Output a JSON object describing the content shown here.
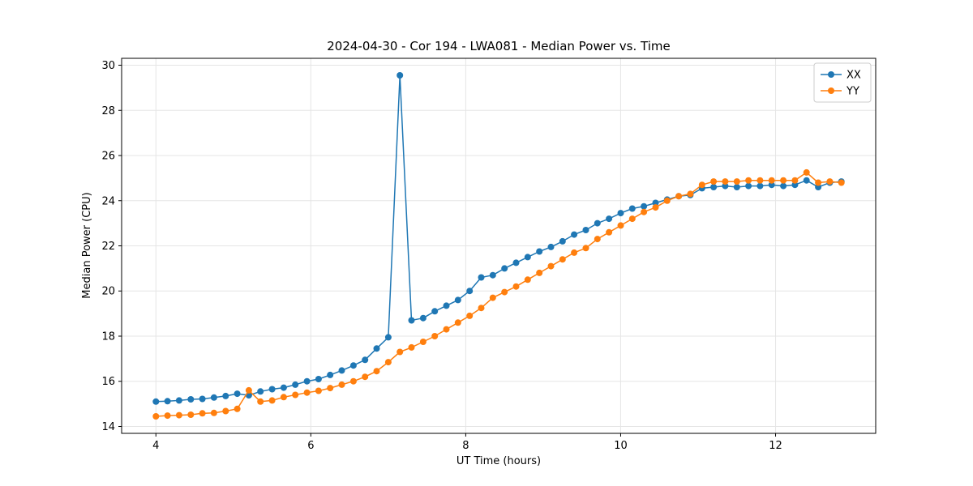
{
  "figure": {
    "background": "#ffffff"
  },
  "chart_data": {
    "type": "line",
    "title": "2024-04-30 - Cor 194 - LWA081 - Median Power vs. Time",
    "xlabel": "UT Time (hours)",
    "ylabel": "Median Power (CPU)",
    "xlim": [
      3.5575,
      13.2925
    ],
    "ylim": [
      13.695,
      30.305
    ],
    "xticks": [
      4,
      6,
      8,
      10,
      12
    ],
    "yticks": [
      14,
      16,
      18,
      20,
      22,
      24,
      26,
      28,
      30
    ],
    "grid": true,
    "grid_color": "#e5e5e5",
    "legend_position": "upper right",
    "x": [
      4.0,
      4.15,
      4.3,
      4.45,
      4.6,
      4.75,
      4.9,
      5.05,
      5.2,
      5.35,
      5.5,
      5.65,
      5.8,
      5.95,
      6.1,
      6.25,
      6.4,
      6.55,
      6.7,
      6.85,
      7.0,
      7.15,
      7.3,
      7.45,
      7.6,
      7.75,
      7.9,
      8.05,
      8.2,
      8.35,
      8.5,
      8.65,
      8.8,
      8.95,
      9.1,
      9.25,
      9.4,
      9.55,
      9.7,
      9.85,
      10.0,
      10.15,
      10.3,
      10.45,
      10.6,
      10.75,
      10.9,
      11.05,
      11.2,
      11.35,
      11.5,
      11.65,
      11.8,
      11.95,
      12.1,
      12.25,
      12.4,
      12.55,
      12.7,
      12.85
    ],
    "series": [
      {
        "name": "XX",
        "color": "#1f77b4",
        "values": [
          15.1,
          15.12,
          15.15,
          15.2,
          15.22,
          15.28,
          15.35,
          15.45,
          15.38,
          15.55,
          15.65,
          15.72,
          15.85,
          16.0,
          16.1,
          16.28,
          16.48,
          16.7,
          16.95,
          17.45,
          17.95,
          29.55,
          18.7,
          18.8,
          19.1,
          19.35,
          19.6,
          20.0,
          20.6,
          20.7,
          21.0,
          21.25,
          21.5,
          21.75,
          21.95,
          22.2,
          22.5,
          22.7,
          23.0,
          23.2,
          23.45,
          23.65,
          23.75,
          23.9,
          24.05,
          24.2,
          24.25,
          24.55,
          24.6,
          24.65,
          24.6,
          24.65,
          24.65,
          24.7,
          24.65,
          24.7,
          24.9,
          24.6,
          24.8,
          24.85
        ]
      },
      {
        "name": "YY",
        "color": "#ff7f0e",
        "values": [
          14.45,
          14.48,
          14.5,
          14.52,
          14.58,
          14.6,
          14.68,
          14.78,
          15.6,
          15.1,
          15.15,
          15.3,
          15.4,
          15.5,
          15.58,
          15.7,
          15.85,
          16.0,
          16.2,
          16.45,
          16.85,
          17.3,
          17.5,
          17.75,
          18.0,
          18.3,
          18.6,
          18.9,
          19.25,
          19.7,
          19.95,
          20.2,
          20.5,
          20.8,
          21.1,
          21.4,
          21.7,
          21.9,
          22.3,
          22.6,
          22.9,
          23.2,
          23.5,
          23.7,
          24.0,
          24.2,
          24.3,
          24.7,
          24.85,
          24.85,
          24.85,
          24.9,
          24.9,
          24.9,
          24.9,
          24.9,
          25.25,
          24.8,
          24.85,
          24.8
        ]
      }
    ]
  }
}
